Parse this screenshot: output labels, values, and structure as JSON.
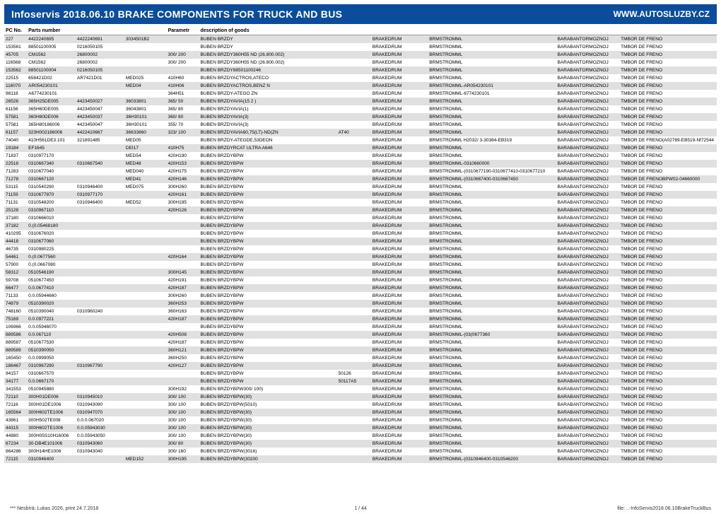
{
  "header": {
    "title": "Infoservis 2018.06.10   BRAKE COMPONENTS FOR TRUCK AND BUS",
    "url": "WWW.AUTOSLUZBY.CZ"
  },
  "columns": [
    "PC No.",
    "Parts number",
    "",
    "",
    "Parametr",
    "description of goods",
    "",
    "",
    "",
    "",
    ""
  ],
  "colWidths": [
    "c0",
    "c1",
    "c2",
    "c3",
    "c4",
    "c5",
    "c6",
    "c7",
    "c8",
    "c9",
    "c10"
  ],
  "rows": [
    [
      "227",
      "4422240695",
      "4422240691",
      "3034501B2",
      "",
      "BUBEN BRZDY",
      "",
      "BRAKEDRUM",
      "BRMSTROMML",
      "BARABANTORMOZNOJ",
      "TMBOR DE FRENO"
    ],
    [
      "153561",
      "88501100005",
      "0216050105",
      "",
      "",
      "BUBEN BRZDY",
      "",
      "BRAKEDRUM",
      "BRMSTROMML",
      "BARABANTORMOZNOJ",
      "TMBOR DE FRENO"
    ],
    [
      "45705",
      "CM1562",
      "26800002",
      "",
      "300/ 200",
      "BUBEN BRZDY360H55 ND  (26.800.002)",
      "",
      "BRAKEDRUM",
      "BRMSTROMML",
      "BARABANTORMOZNOJ",
      "TMBOR DE FRENO"
    ],
    [
      "116568",
      "CM1562",
      "26800002",
      "",
      "300/ 200",
      "BUBEN BRZDY360H55 ND  (26.800.002)",
      "",
      "BRAKEDRUM",
      "BRMSTROMML",
      "BARABANTORMOZNOJ",
      "TMBOR DE FRENO"
    ],
    [
      "153562",
      "88501100004",
      "0216050105",
      "",
      "",
      "BUBEN BRZDY88501100246",
      "",
      "BRAKEDRUM",
      "BRMSTROMML",
      "BARABANTORMOZNOJ",
      "TMBOR DE FRENO"
    ],
    [
      "22515",
      "658421D02",
      "AR7421D01",
      "MED025",
      "410H60",
      "BUBEN BRZDYACTROS,ATECO",
      "",
      "BRAKEDRUM",
      "BRMSTROMML",
      "BARABANTORMOZNOJ",
      "TMBOR DE FRENO"
    ],
    [
      "116070",
      "AR054230101",
      "",
      "MED04",
      "410H06",
      "BUBEN BRZDYACTROS,BENZ N",
      "",
      "BRAKEDRUM",
      "BRMSTROMML-AR054230101",
      "BARABANTORMOZNOJ",
      "TMBOR DE FRENO"
    ],
    [
      "98118",
      "A6774230101",
      "",
      "",
      "364H51",
      "BUBEN BRZDY-ATEGO ZN",
      "",
      "BRAKEDRUM",
      "BRMSTROMML-6774230101",
      "BARABANTORMOZNOJ",
      "TMBOR DE FRENO"
    ],
    [
      "26526",
      "365H25DE005",
      "4423450027",
      "36033801",
      "365/ 50",
      "BUBEN BRZDYAVIA(15 2 )",
      "",
      "BRAKEDRUM",
      "BRMSTROMML",
      "BARABANTORMOZNOJ",
      "TMBOR DE FRENO"
    ],
    [
      "61156",
      "365H60DE005",
      "4423450047",
      "36043801",
      "365/ 80",
      "BUBEN BRZDYAVIA(1)",
      "",
      "BRAKEDRUM",
      "BRMSTROMML",
      "BARABANTORMOZNOJ",
      "TMBOR DE FRENO"
    ],
    [
      "57581",
      "360H80DE006",
      "4423450037",
      "36H30101",
      "360/ 80",
      "BUBEN BRZDYAVIA(3)",
      "",
      "BRAKEDRUM",
      "BRMSTROMML",
      "BARABANTORMOZNOJ",
      "TMBOR DE FRENO"
    ],
    [
      "57581",
      "365H80186006",
      "4423450047",
      "36H30101",
      "355/ 70",
      "BUBEN BRZDYAVIA(3)",
      "",
      "BRAKEDRUM",
      "BRMSTROMML",
      "BARABANTORMOZNOJ",
      "TMBOR DE FRENO"
    ],
    [
      "61157",
      "323H002186006",
      "4422410667",
      "36633860",
      "323/ 100",
      "BUBEN BRZDYAVIA60,75(LT)-ND(ZN",
      "AT40",
      "BRAKEDRUM",
      "BRMSTROMML",
      "BARABANTORMOZNOJ",
      "TMBOR DE FRENO"
    ],
    [
      "74040",
      "410H561DE3.101",
      "321891485",
      "MED05",
      "",
      "BUBEN BRZDY-ATEGDE,53DEON",
      "",
      "BRAKEDRUM",
      "BRMSTROMML H2032/ 3-30384-EB319",
      "BARABANTORMOZNOJ",
      "TMBOR DE FRENO(A02789-EB519-Nf72544"
    ],
    [
      "19184",
      "EF1645",
      "",
      "DEI17",
      "410H75",
      "BUBEN BRZDYRCAT ULTRA A646",
      "",
      "BRAKEDRUM",
      "BRMSTROMML",
      "BARABANTORMOZNOJ",
      "TMBOR DE FRENO"
    ],
    [
      "71837",
      "0310977170",
      "",
      "MED54",
      "420H190",
      "BUBEN BRZDYBPW",
      "",
      "BRAKEDRUM",
      "BRMSTROMML",
      "BARABANTORMOZNOJ",
      "TMBOR DE FRENO"
    ],
    [
      "22518",
      "0310667340",
      "0310667540",
      "MED48",
      "420H153",
      "BUBEN BRZDYBPW",
      "",
      "BRAKEDRUM",
      "BRMSTROMML-0310660000",
      "BARABANTORMOZNOJ",
      "TMBOR DE FRENO"
    ],
    [
      "71283",
      "0310677040",
      "",
      "MED040",
      "420H175",
      "BUBEN BRZDYBPW",
      "",
      "BRAKEDRUM",
      "BRMSTROMML-(0310677190-0310677410-0310677210",
      "BARABANTORMOZNOJ",
      "TMBOR DE FRENO"
    ],
    [
      "71278",
      "0310667120",
      "",
      "MED41",
      "420H146",
      "BUBEN BRZDYBPW",
      "",
      "BRAKEDRUM",
      "BRMSTROMML-(0310667400-0310667450",
      "BARABANTORMOZNOJ",
      "TMBOR DE FRENOBPW02-04660000"
    ],
    [
      "53115",
      "0310540290",
      "0310946400",
      "MED075",
      "300H260",
      "BUBEN BRZDYBPW",
      "",
      "BRAKEDRUM",
      "BRMSTROMML",
      "BARABANTORMOZNOJ",
      "TMBOR DE FRENO"
    ],
    [
      "71159",
      "0310677870",
      "0310977170",
      "",
      "420H161",
      "BUBEN BRZDYBPW",
      "",
      "BRAKEDRUM",
      "BRMSTROMML",
      "BARABANTORMOZNOJ",
      "TMBOR DE FRENO"
    ],
    [
      "71131",
      "0310548200",
      "0310946400",
      "MED52",
      "300H195",
      "BUBEN BRZDYBPW",
      "",
      "BRAKEDRUM",
      "BRMSTROMML",
      "BARABANTORMOZNOJ",
      "TMBOR DE FRENO"
    ],
    [
      "25128",
      "0310967110",
      "",
      "",
      "420H126",
      "BUBEN BRZDYBPW",
      "",
      "BRAKEDRUM",
      "BRMSTROMML",
      "BARABANTORMOZNOJ",
      "TMBOR DE FRENO"
    ],
    [
      "37180",
      "0310666010",
      "",
      "",
      "",
      "BUBEN BRZDYBPW",
      "",
      "BRAKEDRUM",
      "BRMSTROMML",
      "BARABANTORMOZNOJ",
      "TMBOR DE FRENO"
    ],
    [
      "37182",
      "0.(0.05468180",
      "",
      "",
      "",
      "BUBEN BRZDYBPW",
      "",
      "BRAKEDRUM",
      "BRMSTROMML",
      "BARABANTORMOZNOJ",
      "TMBOR DE FRENO"
    ],
    [
      "410295",
      "0310676020",
      "",
      "",
      "",
      "BUBEN BRZDYBPW",
      "",
      "BRAKEDRUM",
      "BRMSTROMML",
      "BARABANTORMOZNOJ",
      "TMBOR DE FRENO"
    ],
    [
      "44418",
      "0310677060",
      "",
      "",
      "",
      "BUBEN BRZDYBPW",
      "",
      "BRAKEDRUM",
      "BRMSTROMML",
      "BARABANTORMOZNOJ",
      "TMBOR DE FRENO"
    ],
    [
      "46735",
      "0310980225",
      "",
      "",
      "",
      "BUBEN BRZDYBPW",
      "",
      "BRAKEDRUM",
      "BRMSTROMML",
      "BARABANTORMOZNOJ",
      "TMBOR DE FRENO"
    ],
    [
      "54461",
      "0.(0.0677560",
      "",
      "",
      "420H164",
      "BUBEN BRZDYBPW",
      "",
      "BRAKEDRUM",
      "BRMSTROMML",
      "BARABANTORMOZNOJ",
      "TMBOR DE FRENO"
    ],
    [
      "57900",
      "0.(0.0667080",
      "",
      "",
      "",
      "BUBEN BRZDYBPW",
      "",
      "BRAKEDRUM",
      "BRMSTROMML",
      "BARABANTORMOZNOJ",
      "TMBOR DE FRENO"
    ],
    [
      "58312",
      "0510546190",
      "",
      "",
      "300H145",
      "BUBEN BRZDYBPW",
      "",
      "BRAKEDRUM",
      "BRMSTROMML",
      "BARABANTORMOZNOJ",
      "TMBOR DE FRENO"
    ],
    [
      "59708",
      "0510677450",
      "",
      "",
      "420H191",
      "BUBEN BRZDYBPW",
      "",
      "BRAKEDRUM",
      "BRMSTROMML",
      "BARABANTORMOZNOJ",
      "TMBOR DE FRENO"
    ],
    [
      "66477",
      "0.0.0677410",
      "",
      "",
      "420H187",
      "BUBEN BRZDYBPW",
      "",
      "BRAKEDRUM",
      "BRMSTROMML",
      "BARABANTORMOZNOJ",
      "TMBOR DE FRENO"
    ],
    [
      "71133",
      "0.0.05944660",
      "",
      "",
      "300H260",
      "BUBEN BRZDYBPW",
      "",
      "BRAKEDRUM",
      "BRMSTROMML",
      "BARABANTORMOZNOJ",
      "TMBOR DE FRENO"
    ],
    [
      "74879",
      "0510390020",
      "",
      "",
      "360H253",
      "BUBEN BRZDYBPW",
      "",
      "BRAKEDRUM",
      "BRMSTROMML",
      "BARABANTORMOZNOJ",
      "TMBOR DE FRENO"
    ],
    [
      "748160",
      "0510390040",
      "0310960240",
      "",
      "360H163",
      "BUBEN BRZDYBPW",
      "",
      "BRAKEDRUM",
      "BRMSTROMML",
      "BARABANTORMOZNOJ",
      "TMBOR DE FRENO"
    ],
    [
      "75169",
      "0.0.0977221",
      "",
      "",
      "420H187",
      "BUBEN BRZDYBPW",
      "",
      "BRAKEDRUM",
      "BRMSTROMML",
      "BARABANTORMOZNOJ",
      "TMBOR DE FRENO"
    ],
    [
      "106966",
      "0.0.05946070",
      "",
      "",
      "",
      "BUBEN BRZDYBPW",
      "",
      "BRAKEDRUM",
      "BRMSTROMML",
      "BARABANTORMOZNOJ",
      "TMBOR DE FRENO"
    ],
    [
      "889586",
      "0.0.067110",
      "",
      "",
      "420H508",
      "BUBEN BRZDYBPW",
      "",
      "BRAKEDRUM",
      "BRMSTROMML-(03(0677360",
      "BARABANTORMOZNOJ",
      "TMBOR DE FRENO"
    ],
    [
      "889587",
      "0510677530",
      "",
      "",
      "420H187",
      "BUBEN BRZDYBPW",
      "",
      "BRAKEDRUM",
      "BRMSTROMML",
      "BARABANTORMOZNOJ",
      "TMBOR DE FRENO"
    ],
    [
      "889589",
      "0510390050",
      "",
      "",
      "360H121",
      "BUBEN BRZDYBPW",
      "",
      "BRAKEDRUM",
      "BRMSTROMML",
      "BARABANTORMOZNOJ",
      "TMBOR DE FRENO"
    ],
    [
      "165450",
      "0.0.0999050",
      "",
      "",
      "360H250",
      "BUBEN BRZDYBPW",
      "",
      "BRAKEDRUM",
      "BRMSTROMML",
      "BARABANTORMOZNOJ",
      "TMBOR DE FRENO"
    ],
    [
      "186467",
      "0310967290",
      "0310967790",
      "",
      "420H127",
      "BUBEN BRZDYBPW",
      "",
      "BRAKEDRUM",
      "BRMSTROMML",
      "BARABANTORMOZNOJ",
      "TMBOR DE FRENO"
    ],
    [
      "94157",
      "0310667570",
      "",
      "",
      "",
      "BUBEN BRZDYBPW",
      "50126",
      "BRAKEDRUM",
      "BRMSTROMML",
      "BARABANTORMOZNOJ",
      "TMBOR DE FRENO"
    ],
    [
      "34177",
      "0.0.0667170",
      "",
      "",
      "",
      "BUBEN BRZDYBPW",
      "50117A5",
      "BRAKEDRUM",
      "BRMSTROMML",
      "BARABANTORMOZNOJ",
      "TMBOR DE FRENO"
    ],
    [
      "341553",
      "0510945880",
      "",
      "",
      "300H192",
      "BUBEN BRZDYBPW300/ 100)",
      "",
      "BRAKEDRUM",
      "BRMSTROMML",
      "BARABANTORMOZNOJ",
      "TMBOR DE FRENO"
    ],
    [
      "72110",
      "300H01DE006",
      "0310945010",
      "",
      "300/ 100",
      "BUBEN BRZDYBPW(30)",
      "",
      "BRAKEDRUM",
      "BRMSTROMML",
      "BARABANTORMOZNOJ",
      "TMBOR DE FRENO"
    ],
    [
      "72116",
      "300H01DE1006",
      "0310943090",
      "",
      "300/ 100",
      "BUBEN BRZDYBPW(5010)",
      "",
      "BRAKEDRUM",
      "BRMSTROMML",
      "BARABANTORMOZNOJ",
      "TMBOR DE FRENO"
    ],
    [
      "165564",
      "300H602TE1006",
      "0310947070",
      "",
      "300/ 100",
      "BUBEN BRZDYBPW(30)",
      "",
      "BRAKEDRUM",
      "BRMSTROMML",
      "BARABANTORMOZNOJ",
      "TMBOR DE FRENO"
    ],
    [
      "43861",
      "300H502TE008",
      "0.0.0.067020",
      "",
      "300/ 100",
      "BUBEN BRZDYBPW(30)",
      "",
      "BRAKEDRUM",
      "BRMSTROMML",
      "BARABANTORMOZNOJ",
      "TMBOR DE FRENO"
    ],
    [
      "44315",
      "300H602TE1006",
      "0.0.05943030",
      "",
      "300/ 100",
      "BUBEN BRZDYBPW(30)",
      "",
      "BRAKEDRUM",
      "BRMSTROMML",
      "BARABANTORMOZNOJ",
      "TMBOR DE FRENO"
    ],
    [
      "44880",
      "300H05S10H16006",
      "0.0.05943050",
      "",
      "300/ 100",
      "BUBEN BRZDYBPW(30)",
      "",
      "BRAKEDRUM",
      "BRMSTROMML",
      "BARABANTORMOZNOJ",
      "TMBOR DE FRENO"
    ],
    [
      "67234",
      "30-DB4E101006",
      "0310943060",
      "",
      "300/ 80",
      "BUBEN BRZDYBPW(30)",
      "",
      "BRAKEDRUM",
      "BRMSTROMML",
      "BARABANTORMOZNOJ",
      "TMBOR DE FRENO"
    ],
    [
      "864286",
      "300H14HE1006",
      "0310943040",
      "",
      "300/ 160",
      "BUBEN BRZDYBPW(3016)",
      "",
      "BRAKEDRUM",
      "BRMSTROMML",
      "BARABANTORMOZNOJ",
      "TMBOR DE FRENO"
    ],
    [
      "72115",
      "0310946400",
      "",
      "MED152",
      "300H195",
      "BUBEN BRZDYBPW(30200",
      "",
      "BRAKEDRUM",
      "BRMSTROMML-(0310946400-0310546200",
      "BARABANTORMOZNOJ",
      "TMBOR DE FRENO"
    ]
  ],
  "footer": {
    "left": "*** Nesbírá: Lukas 2026, print 24.7.2018",
    "center": "1 / 44",
    "right": "file: ..-InfoServis2018.06.10BrakeTruckBus"
  },
  "altRowColor": "#e0e0e0"
}
